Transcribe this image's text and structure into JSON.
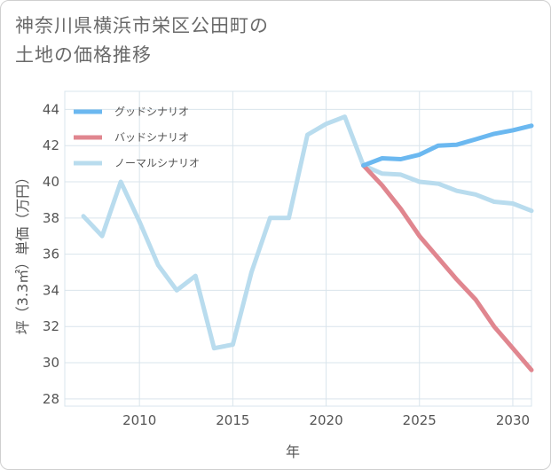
{
  "header": {
    "title_line1": "神奈川県横浜市栄区公田町の",
    "title_line2": "土地の価格推移"
  },
  "chart_data": {
    "type": "line",
    "title": "神奈川県横浜市栄区公田町の土地の価格推移",
    "xlabel": "年",
    "ylabel": "坪（3.3㎡）単価（万円）",
    "xlim": [
      2006,
      2031
    ],
    "ylim": [
      27.6,
      45
    ],
    "xticks": [
      2010,
      2015,
      2020,
      2025,
      2030
    ],
    "yticks": [
      28,
      30,
      32,
      34,
      36,
      38,
      40,
      42,
      44
    ],
    "grid": true,
    "legend_position": "top-left",
    "series": [
      {
        "name": "グッドシナリオ",
        "color": "#6bb8f0",
        "x": [
          2022,
          2023,
          2024,
          2025,
          2026,
          2027,
          2028,
          2029,
          2030,
          2031
        ],
        "values": [
          40.9,
          41.3,
          41.25,
          41.5,
          42.0,
          42.05,
          42.35,
          42.65,
          42.85,
          43.1
        ]
      },
      {
        "name": "バッドシナリオ",
        "color": "#e0868f",
        "x": [
          2022,
          2023,
          2024,
          2025,
          2026,
          2027,
          2028,
          2029,
          2030,
          2031
        ],
        "values": [
          40.9,
          39.8,
          38.5,
          37.0,
          35.8,
          34.6,
          33.5,
          32.0,
          30.8,
          29.6
        ]
      },
      {
        "name": "ノーマルシナリオ",
        "color": "#b9dcee",
        "x": [
          2007,
          2008,
          2009,
          2010,
          2011,
          2012,
          2013,
          2014,
          2015,
          2016,
          2017,
          2018,
          2019,
          2020,
          2021,
          2022,
          2023,
          2024,
          2025,
          2026,
          2027,
          2028,
          2029,
          2030,
          2031
        ],
        "values": [
          38.1,
          37.0,
          40.0,
          37.8,
          35.4,
          34.0,
          34.8,
          30.8,
          31.0,
          35.0,
          38.0,
          38.0,
          42.6,
          43.2,
          43.6,
          40.9,
          40.45,
          40.4,
          40.0,
          39.9,
          39.5,
          39.3,
          38.9,
          38.8,
          38.4
        ]
      }
    ]
  }
}
